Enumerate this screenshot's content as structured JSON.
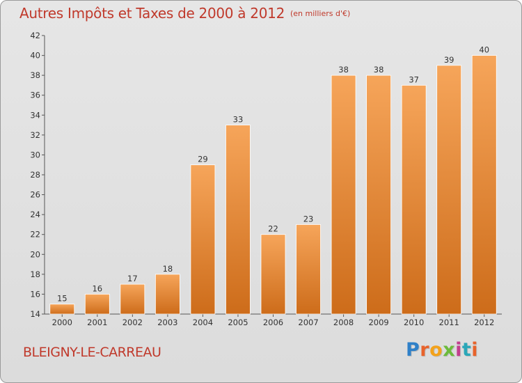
{
  "header": {
    "title": "Autres Impôts et Taxes de 2000 à 2012",
    "unit": "(en milliers d'€)"
  },
  "footer": {
    "city": "BLEIGNY-LE-CARREAU",
    "logo": {
      "letters": [
        "P",
        "r",
        "o",
        "x",
        "i",
        "t",
        "i"
      ]
    }
  },
  "colors": {
    "title": "#c0392b",
    "bar_light": "#f6a55a",
    "bar_dark": "#cd6c1a",
    "background": "#e0e0e0"
  },
  "chart_data": {
    "type": "bar",
    "title": "Autres Impôts et Taxes de 2000 à 2012",
    "subtitle": "(en milliers d'€)",
    "xlabel": "",
    "ylabel": "",
    "categories": [
      "2000",
      "2001",
      "2002",
      "2003",
      "2004",
      "2005",
      "2006",
      "2007",
      "2008",
      "2009",
      "2010",
      "2011",
      "2012"
    ],
    "values": [
      15,
      16,
      17,
      18,
      29,
      33,
      22,
      23,
      38,
      38,
      37,
      39,
      40
    ],
    "ylim": [
      14,
      42
    ],
    "yticks": [
      14,
      16,
      18,
      20,
      22,
      24,
      26,
      28,
      30,
      32,
      34,
      36,
      38,
      40,
      42
    ],
    "grid": false,
    "legend": "none"
  }
}
